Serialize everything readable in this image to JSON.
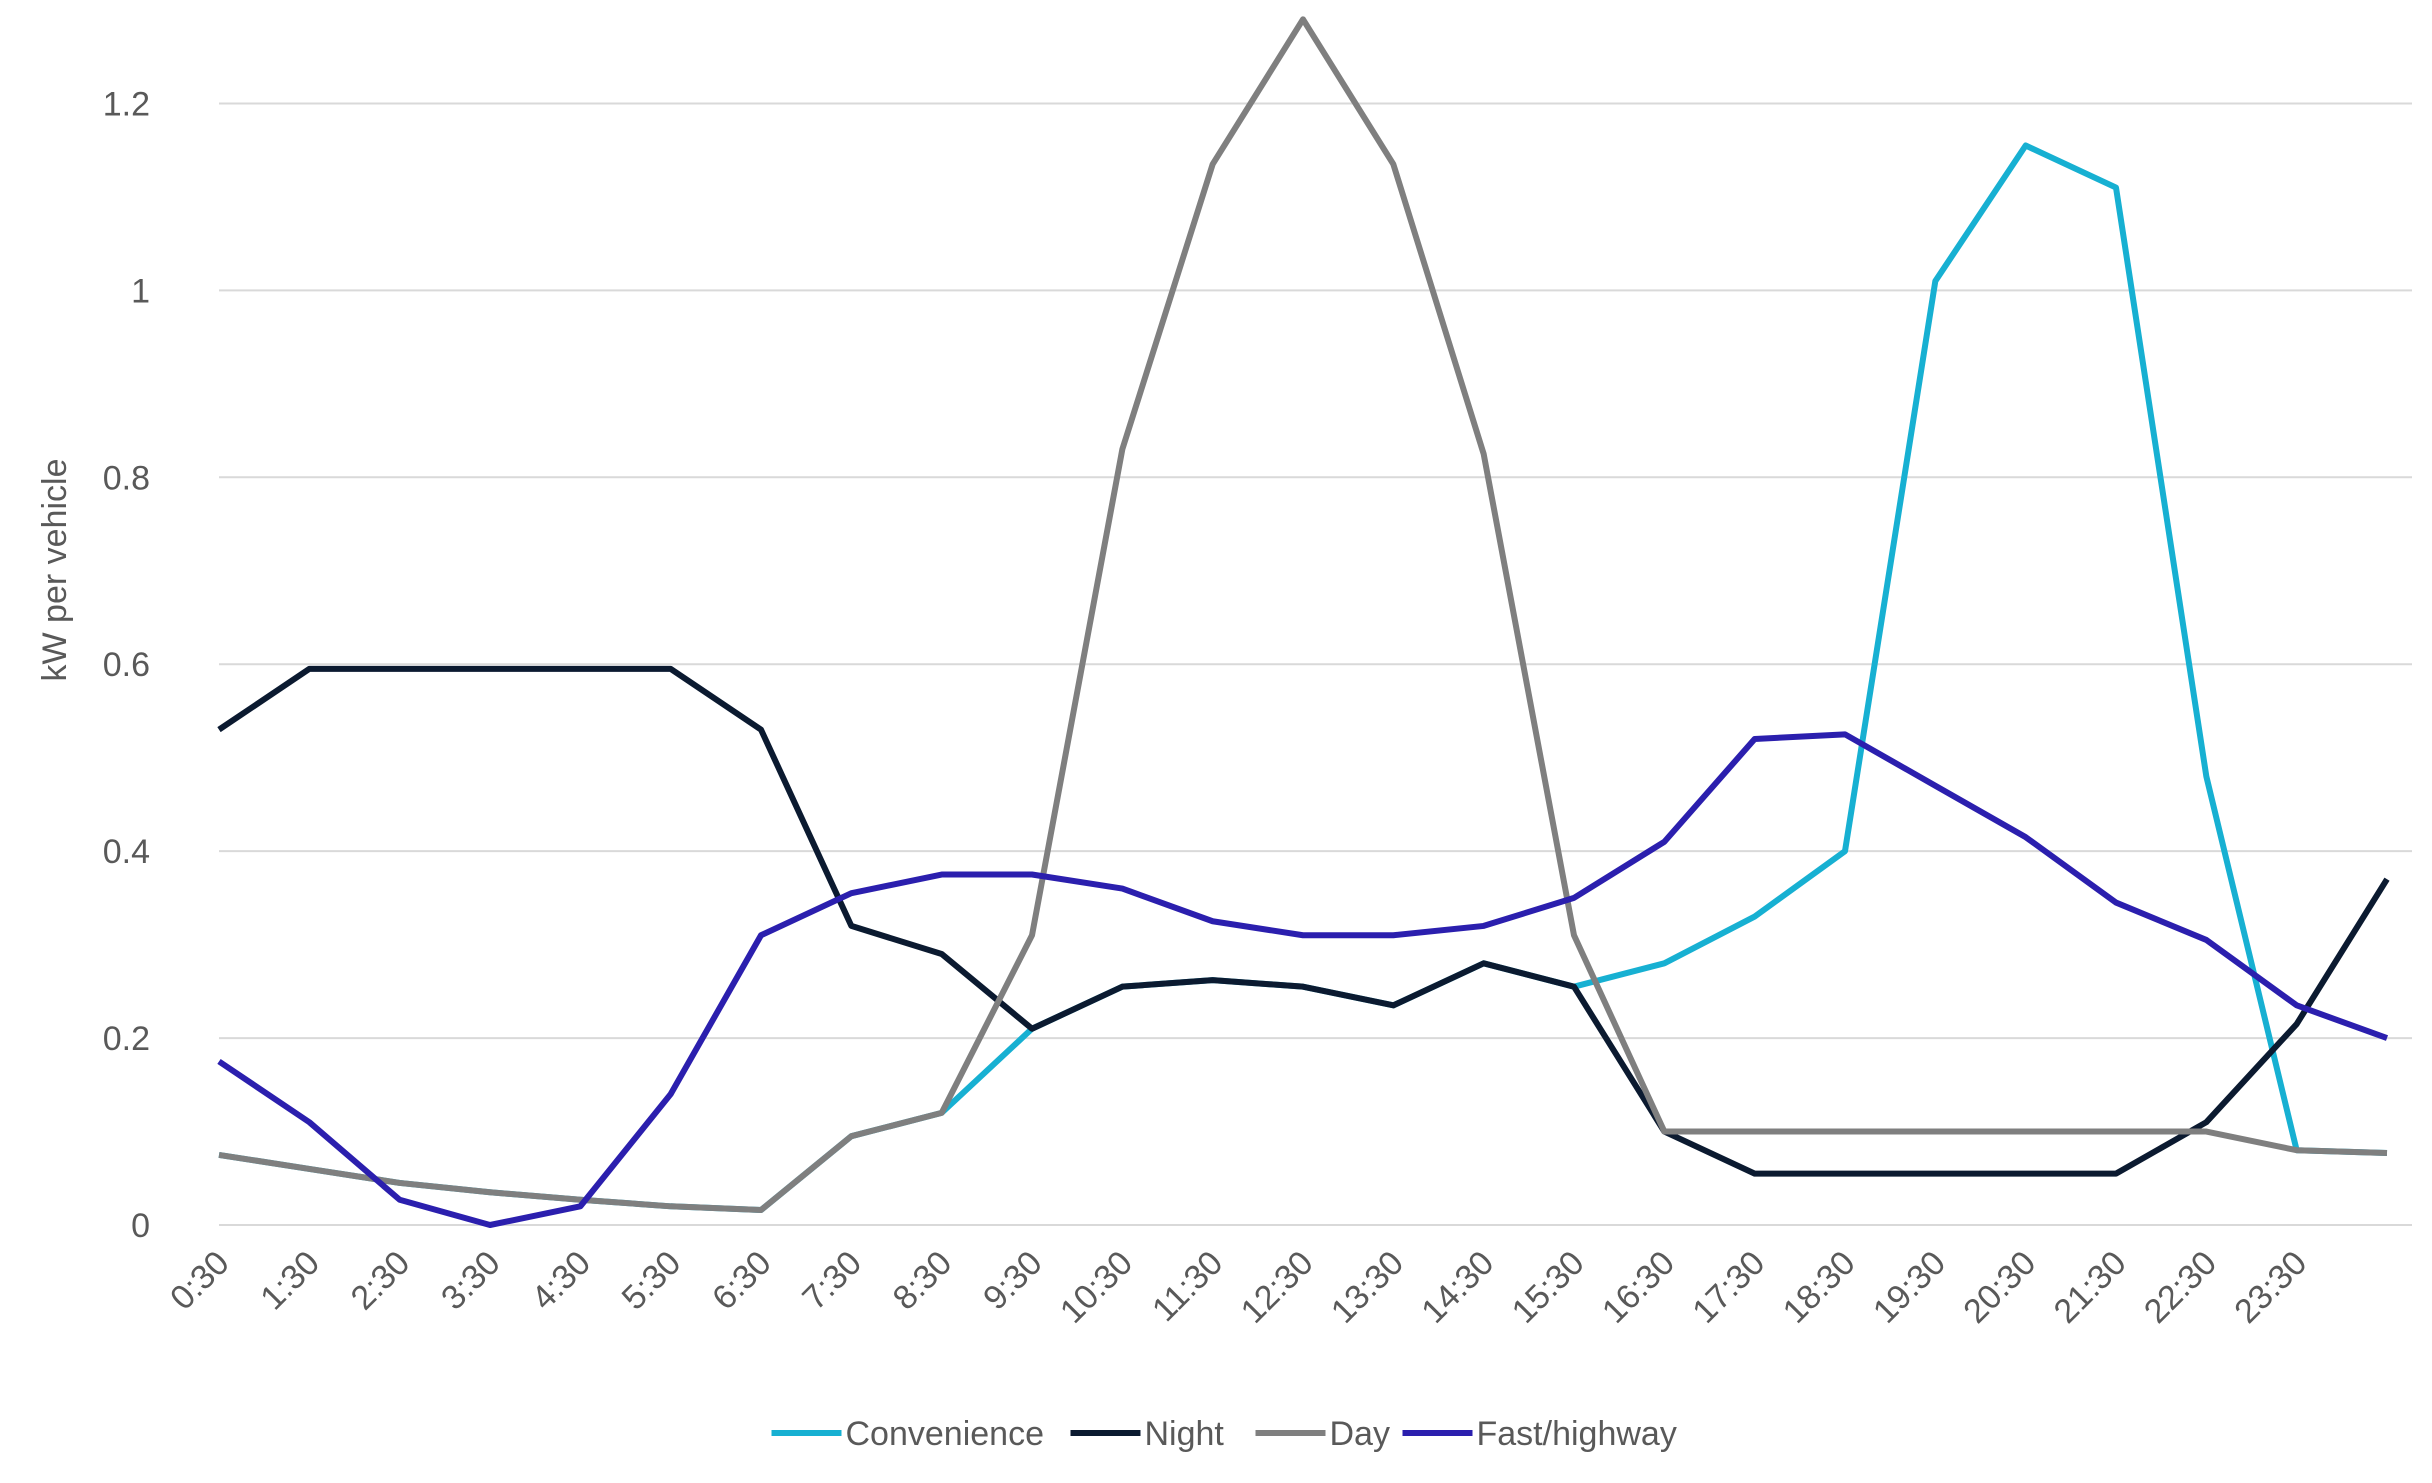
{
  "chart_data": {
    "type": "line",
    "y_label": "kW per vehicle",
    "categories": [
      "0:30",
      "1:30",
      "2:30",
      "3:30",
      "4:30",
      "5:30",
      "6:30",
      "7:30",
      "8:30",
      "9:30",
      "10:30",
      "11:30",
      "12:30",
      "13:30",
      "14:30",
      "15:30",
      "16:30",
      "17:30",
      "18:30",
      "19:30",
      "20:30",
      "21:30",
      "22:30",
      "23:30",
      null
    ],
    "series": [
      {
        "name": "Convenience",
        "color": "#17b0d2",
        "values": [
          0.075,
          0.06,
          0.045,
          0.035,
          0.027,
          0.02,
          0.016,
          0.095,
          0.12,
          0.21,
          0.255,
          0.262,
          0.255,
          0.235,
          0.28,
          0.255,
          0.28,
          0.33,
          0.4,
          1.01,
          1.155,
          1.11,
          0.48,
          0.08,
          0.077
        ]
      },
      {
        "name": "Night",
        "color": "#0b1a30",
        "values": [
          0.53,
          0.595,
          0.595,
          0.595,
          0.595,
          0.595,
          0.53,
          0.32,
          0.29,
          0.21,
          0.255,
          0.262,
          0.255,
          0.235,
          0.28,
          0.255,
          0.1,
          0.055,
          0.055,
          0.055,
          0.055,
          0.055,
          0.11,
          0.215,
          0.37
        ]
      },
      {
        "name": "Day",
        "color": "#7f7f7f",
        "values": [
          0.075,
          0.06,
          0.045,
          0.035,
          0.027,
          0.02,
          0.016,
          0.095,
          0.12,
          0.31,
          0.83,
          1.135,
          1.29,
          1.135,
          0.825,
          0.31,
          0.1,
          0.1,
          0.1,
          0.1,
          0.1,
          0.1,
          0.1,
          0.08,
          0.077
        ]
      },
      {
        "name": "Fast/highway",
        "color": "#2b1fae",
        "values": [
          0.175,
          0.11,
          0.027,
          0.0,
          0.02,
          0.14,
          0.31,
          0.355,
          0.375,
          0.375,
          0.36,
          0.325,
          0.31,
          0.31,
          0.32,
          0.35,
          0.41,
          0.52,
          0.525,
          0.47,
          0.415,
          0.345,
          0.305,
          0.235,
          0.2
        ]
      }
    ],
    "ylim": [
      0,
      1.3
    ],
    "yticks": [
      0,
      0.2,
      0.4,
      0.6,
      0.8,
      1,
      1.2
    ],
    "grid": true
  }
}
